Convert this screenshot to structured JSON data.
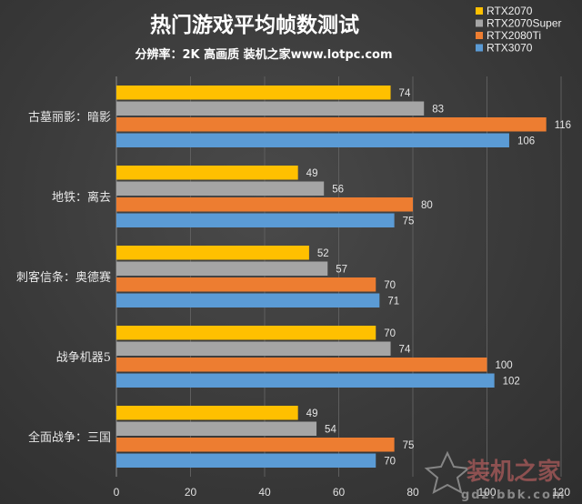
{
  "chart_data": {
    "type": "bar",
    "orientation": "horizontal",
    "title": "热门游戏平均帧数测试",
    "subtitle": "分辨率：2K 高画质 装机之家www.lotpc.com",
    "categories": [
      "古墓丽影：暗影",
      "地铁：离去",
      "刺客信条：奥德赛",
      "战争机器5",
      "全面战争：三国"
    ],
    "series": [
      {
        "name": "RTX2070",
        "color": "#ffc000",
        "values": [
          74,
          49,
          52,
          70,
          49
        ]
      },
      {
        "name": "RTX2070Super",
        "color": "#a5a5a5",
        "values": [
          83,
          56,
          57,
          74,
          54
        ]
      },
      {
        "name": "RTX2080Ti",
        "color": "#ed7d31",
        "values": [
          116,
          80,
          70,
          100,
          75
        ]
      },
      {
        "name": "RTX3070",
        "color": "#5b9bd5",
        "values": [
          106,
          75,
          71,
          102,
          70
        ]
      }
    ],
    "xlim": [
      0,
      120
    ],
    "xticks": [
      0,
      20,
      40,
      60,
      80,
      100,
      120
    ],
    "grid": true,
    "legend_position": "top-right"
  },
  "watermark": {
    "text": "装机之家",
    "url": "gdz.bbk.com"
  }
}
